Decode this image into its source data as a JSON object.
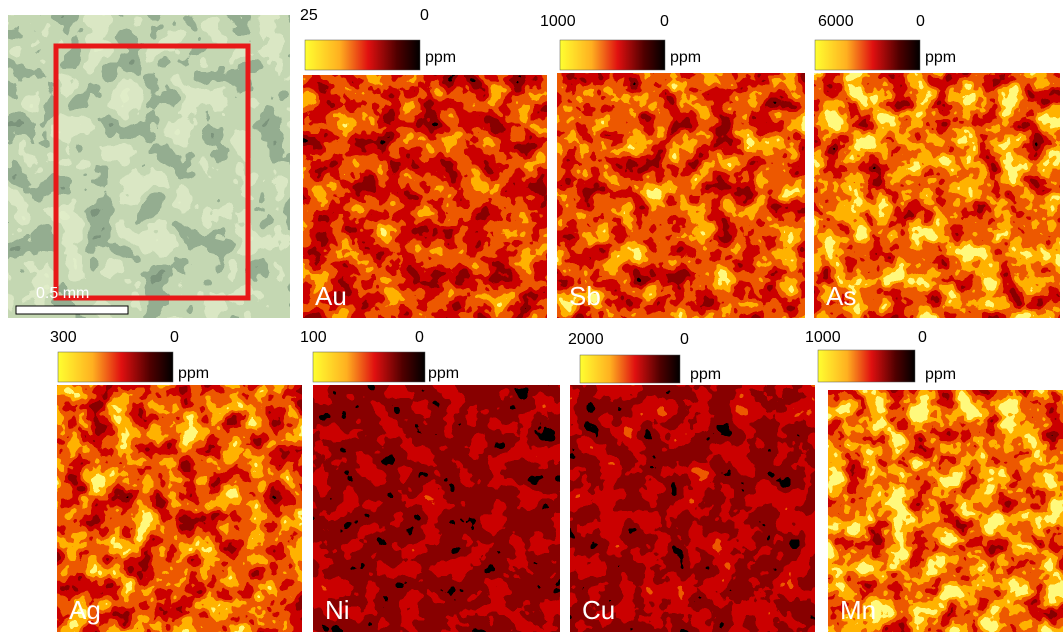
{
  "photo": {
    "scale_bar": "0.5 mm"
  },
  "maps": [
    {
      "element": "Au",
      "max": 25,
      "min": 0,
      "unit": "ppm"
    },
    {
      "element": "Sb",
      "max": 1000,
      "min": 0,
      "unit": "ppm"
    },
    {
      "element": "As",
      "max": 6000,
      "min": 0,
      "unit": "ppm"
    },
    {
      "element": "Ag",
      "max": 300,
      "min": 0,
      "unit": "ppm"
    },
    {
      "element": "Ni",
      "max": 100,
      "min": 0,
      "unit": "ppm"
    },
    {
      "element": "Cu",
      "max": 2000,
      "min": 0,
      "unit": "ppm"
    },
    {
      "element": "Mn",
      "max": 1000,
      "min": 0,
      "unit": "ppm"
    }
  ]
}
